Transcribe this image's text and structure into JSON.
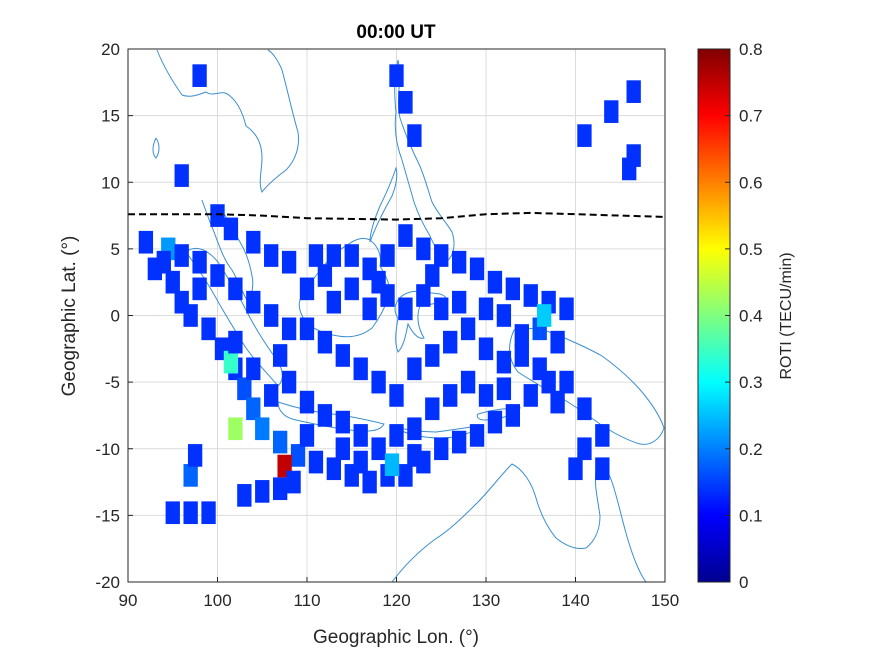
{
  "chart_data": {
    "type": "heatmap",
    "title": "00:00 UT",
    "xlabel": "Geographic Lon. (°)",
    "ylabel": "Geographic Lat. (°)",
    "xlim": [
      90,
      150
    ],
    "ylim": [
      -20,
      20
    ],
    "xticks": [
      "90",
      "100",
      "110",
      "120",
      "130",
      "140",
      "150"
    ],
    "yticks": [
      "20",
      "15",
      "10",
      "5",
      "0",
      "-5",
      "-10",
      "-15",
      "-20"
    ],
    "grid": true,
    "colorbar": {
      "label": "ROTI (TECU/min)",
      "range": [
        0,
        0.8
      ],
      "ticks": [
        "0.8",
        "0.7",
        "0.6",
        "0.5",
        "0.4",
        "0.3",
        "0.2",
        "0.1",
        "0"
      ],
      "colormap": "jet"
    },
    "magnetic_equator": {
      "style": "dashed",
      "color": "#000000",
      "points": [
        [
          90,
          7.6
        ],
        [
          100,
          7.6
        ],
        [
          105,
          7.5
        ],
        [
          110,
          7.3
        ],
        [
          120,
          7.2
        ],
        [
          125,
          7.3
        ],
        [
          130,
          7.6
        ],
        [
          135,
          7.7
        ],
        [
          140,
          7.6
        ],
        [
          145,
          7.5
        ],
        [
          150,
          7.4
        ]
      ]
    },
    "coastline_color": "#3a8fd0",
    "cells": [
      [
        96,
        10.5,
        0.05
      ],
      [
        98,
        18,
        0.05
      ],
      [
        120,
        18,
        0.05
      ],
      [
        121,
        16,
        0.05
      ],
      [
        122,
        13.5,
        0.05
      ],
      [
        141,
        13.5,
        0.05
      ],
      [
        144,
        15.3,
        0.05
      ],
      [
        146.5,
        16.8,
        0.05
      ],
      [
        146.5,
        12,
        0.05
      ],
      [
        146,
        11,
        0.05
      ],
      [
        100,
        7.5,
        0.05
      ],
      [
        101.5,
        6.5,
        0.05
      ],
      [
        104,
        5.5,
        0.05
      ],
      [
        106,
        4.5,
        0.05
      ],
      [
        108,
        4,
        0.05
      ],
      [
        111,
        4.5,
        0.05
      ],
      [
        113,
        4.5,
        0.05
      ],
      [
        115,
        4.5,
        0.05
      ],
      [
        117,
        3.5,
        0.05
      ],
      [
        119,
        4.5,
        0.05
      ],
      [
        121,
        6,
        0.05
      ],
      [
        123,
        5,
        0.05
      ],
      [
        125,
        4.5,
        0.05
      ],
      [
        127,
        4,
        0.05
      ],
      [
        129,
        3.5,
        0.05
      ],
      [
        131,
        2.5,
        0.05
      ],
      [
        133,
        2,
        0.05
      ],
      [
        135,
        1.5,
        0.05
      ],
      [
        137,
        1,
        0.05
      ],
      [
        139,
        0.5,
        0.05
      ],
      [
        92,
        5.5,
        0.05
      ],
      [
        93,
        3.5,
        0.05
      ],
      [
        95,
        2.5,
        0.05
      ],
      [
        96,
        1,
        0.05
      ],
      [
        97,
        0,
        0.05
      ],
      [
        99,
        -1,
        0.05
      ],
      [
        100.5,
        -2.5,
        0.05
      ],
      [
        102,
        -4,
        0.05
      ],
      [
        103,
        -5.5,
        0.08
      ],
      [
        104,
        -7,
        0.1
      ],
      [
        105,
        -8.5,
        0.12
      ],
      [
        107,
        -9.5,
        0.1
      ],
      [
        109,
        -10.5,
        0.08
      ],
      [
        111,
        -11,
        0.05
      ],
      [
        113,
        -11.5,
        0.05
      ],
      [
        115,
        -12,
        0.05
      ],
      [
        117,
        -12.5,
        0.05
      ],
      [
        119,
        -12,
        0.05
      ],
      [
        121,
        -12,
        0.05
      ],
      [
        123,
        -11,
        0.05
      ],
      [
        125,
        -10,
        0.05
      ],
      [
        127,
        -9.5,
        0.05
      ],
      [
        129,
        -9,
        0.05
      ],
      [
        131,
        -8,
        0.05
      ],
      [
        133,
        -7.5,
        0.05
      ],
      [
        135,
        -6,
        0.05
      ],
      [
        137,
        -5,
        0.05
      ],
      [
        139,
        -5,
        0.05
      ],
      [
        141,
        -7,
        0.05
      ],
      [
        141,
        -10,
        0.05
      ],
      [
        140,
        -11.5,
        0.05
      ],
      [
        143,
        -11.5,
        0.05
      ],
      [
        143,
        -9,
        0.05
      ],
      [
        110,
        -1,
        0.05
      ],
      [
        112,
        -2,
        0.05
      ],
      [
        114,
        -3,
        0.05
      ],
      [
        116,
        -4,
        0.05
      ],
      [
        118,
        -5,
        0.05
      ],
      [
        120,
        -6,
        0.05
      ],
      [
        122,
        -4,
        0.05
      ],
      [
        124,
        -3,
        0.05
      ],
      [
        126,
        -2,
        0.05
      ],
      [
        128,
        -1,
        0.05
      ],
      [
        130,
        -2.5,
        0.05
      ],
      [
        132,
        -3.5,
        0.05
      ],
      [
        134,
        -3,
        0.05
      ],
      [
        136,
        -1,
        0.08
      ],
      [
        138,
        -2,
        0.05
      ],
      [
        113,
        1,
        0.05
      ],
      [
        115,
        2,
        0.05
      ],
      [
        117,
        0.5,
        0.05
      ],
      [
        119,
        1.5,
        0.05
      ],
      [
        121,
        0.5,
        0.05
      ],
      [
        123,
        1.5,
        0.05
      ],
      [
        125,
        0.5,
        0.05
      ],
      [
        127,
        1,
        0.05
      ],
      [
        107,
        -3,
        0.05
      ],
      [
        108,
        -5,
        0.05
      ],
      [
        110,
        -6.5,
        0.05
      ],
      [
        112,
        -7.5,
        0.05
      ],
      [
        114,
        -8,
        0.05
      ],
      [
        116,
        -9,
        0.05
      ],
      [
        118,
        -10,
        0.05
      ],
      [
        120,
        -9,
        0.05
      ],
      [
        122,
        -8.5,
        0.05
      ],
      [
        107.5,
        -11.3,
        0.8
      ],
      [
        101.5,
        -3.5,
        0.3
      ],
      [
        102,
        -8.5,
        0.4
      ],
      [
        136.5,
        0,
        0.2
      ],
      [
        119.5,
        -11.2,
        0.18
      ],
      [
        94.5,
        5,
        0.15
      ],
      [
        97,
        -12,
        0.1
      ],
      [
        95,
        -14.8,
        0.05
      ],
      [
        97,
        -14.8,
        0.05
      ],
      [
        99,
        -14.8,
        0.05
      ],
      [
        103,
        -13.5,
        0.05
      ],
      [
        105,
        -13.2,
        0.05
      ],
      [
        107,
        -13,
        0.05
      ],
      [
        108.5,
        -12.5,
        0.05
      ],
      [
        97.5,
        -10.5,
        0.05
      ],
      [
        94,
        4,
        0.05
      ],
      [
        98,
        4,
        0.05
      ],
      [
        100,
        3,
        0.05
      ],
      [
        102,
        2,
        0.05
      ],
      [
        104,
        1,
        0.05
      ],
      [
        106,
        0,
        0.05
      ],
      [
        108,
        -1,
        0.05
      ],
      [
        110,
        2,
        0.05
      ],
      [
        112,
        3,
        0.05
      ],
      [
        118,
        2.5,
        0.05
      ],
      [
        124,
        3,
        0.05
      ],
      [
        130,
        0.5,
        0.05
      ],
      [
        132,
        0,
        0.05
      ],
      [
        134,
        -1.5,
        0.05
      ],
      [
        128,
        -5,
        0.05
      ],
      [
        126,
        -6,
        0.05
      ],
      [
        124,
        -7,
        0.05
      ],
      [
        130,
        -6,
        0.05
      ],
      [
        132,
        -5.5,
        0.05
      ],
      [
        136,
        -4,
        0.05
      ],
      [
        138,
        -6.5,
        0.05
      ],
      [
        122,
        -10.5,
        0.05
      ],
      [
        114,
        -10,
        0.05
      ],
      [
        116,
        -11,
        0.05
      ],
      [
        110,
        -9,
        0.05
      ],
      [
        106,
        -6,
        0.05
      ],
      [
        104,
        -4,
        0.05
      ],
      [
        102,
        -2,
        0.05
      ],
      [
        98,
        2,
        0.05
      ],
      [
        96,
        4.5,
        0.05
      ]
    ]
  }
}
